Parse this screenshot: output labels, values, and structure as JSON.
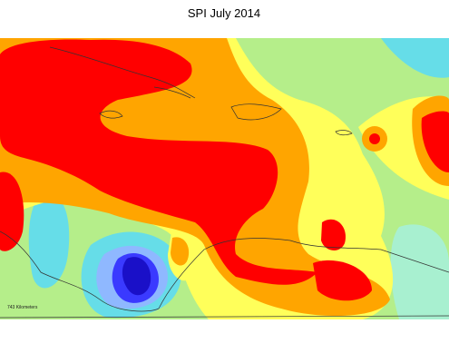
{
  "title": "SPI July 2014",
  "scale_label": "743 Kilometers"
}
